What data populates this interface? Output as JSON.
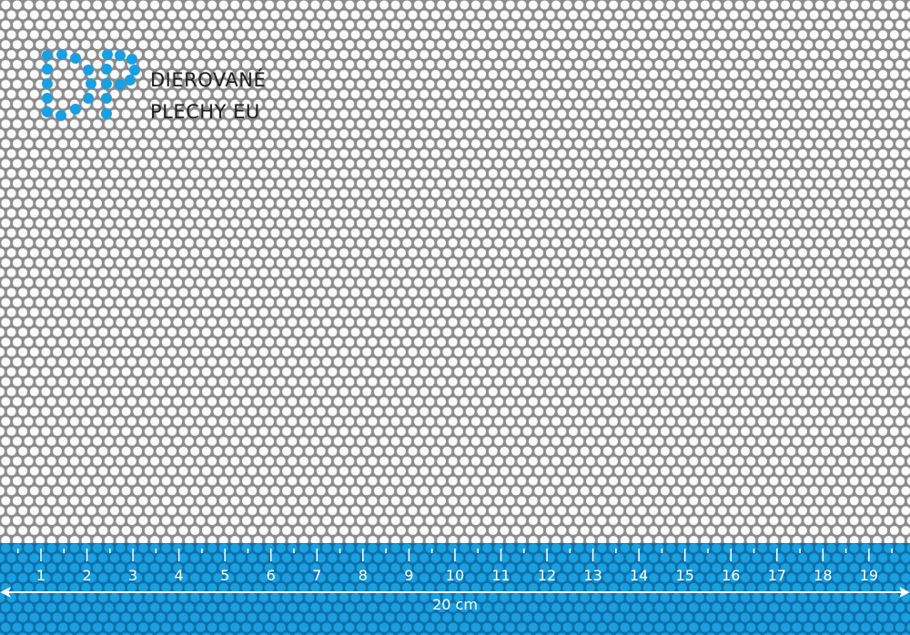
{
  "logo": {
    "line1": "DIEROVANÉ",
    "line2": "PLECHY EU",
    "mark": "DP",
    "color": "#1a9fe0"
  },
  "ruler": {
    "labels": [
      "1",
      "2",
      "3",
      "4",
      "5",
      "6",
      "7",
      "8",
      "9",
      "10",
      "11",
      "12",
      "13",
      "14",
      "15",
      "16",
      "17",
      "18",
      "19"
    ],
    "length_label": "20 cm",
    "band_color": "#0d6fa6",
    "hole_color": "#1a9fe0"
  },
  "sheet": {
    "metal_color": "#8c8c8c",
    "hole_color": "#ffffff"
  }
}
